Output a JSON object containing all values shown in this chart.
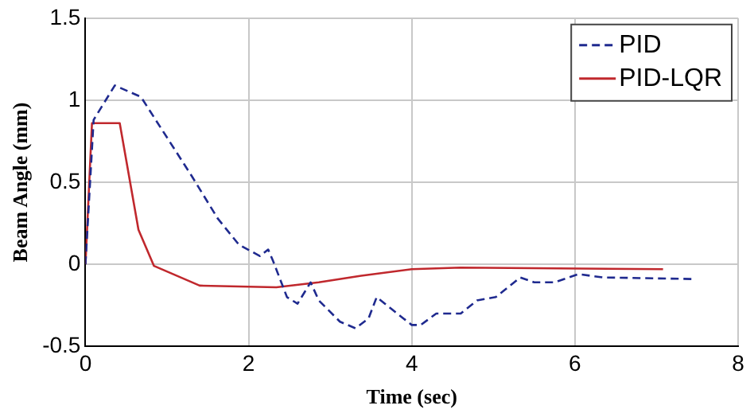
{
  "chart_data": {
    "type": "line",
    "xlabel": "Time (sec)",
    "ylabel": "Beam Angle (mm)",
    "xlim": [
      0,
      8
    ],
    "xticks": [
      0,
      2,
      4,
      6,
      8
    ],
    "ylim": [
      -0.5,
      1.5
    ],
    "yticks": [
      -0.5,
      0,
      0.5,
      1,
      1.5
    ],
    "grid": true,
    "legend": "top right",
    "marker": "none",
    "series": [
      {
        "name": "PID",
        "color": "#1f2a8f",
        "line_style": "dashed",
        "x": [
          0,
          0.1,
          0.36,
          0.68,
          1.3,
          1.62,
          1.88,
          2.14,
          2.24,
          2.3,
          2.47,
          2.6,
          2.76,
          2.86,
          3.12,
          3.31,
          3.47,
          3.57,
          3.77,
          4.0,
          4.11,
          4.3,
          4.6,
          4.8,
          5.03,
          5.33,
          5.5,
          5.75,
          6.04,
          6.34,
          7.47
        ],
        "values": [
          0,
          0.88,
          1.09,
          1.02,
          0.54,
          0.28,
          0.12,
          0.05,
          0.09,
          0.02,
          -0.2,
          -0.24,
          -0.11,
          -0.22,
          -0.35,
          -0.39,
          -0.33,
          -0.2,
          -0.28,
          -0.37,
          -0.37,
          -0.3,
          -0.3,
          -0.22,
          -0.2,
          -0.08,
          -0.11,
          -0.11,
          -0.06,
          -0.08,
          -0.09
        ]
      },
      {
        "name": "PID-LQR",
        "color": "#c0282d",
        "line_style": "solid",
        "x": [
          0,
          0.08,
          0.42,
          0.65,
          0.84,
          1.4,
          2.34,
          2.86,
          3.38,
          4.0,
          4.6,
          7.08
        ],
        "values": [
          0,
          0.86,
          0.86,
          0.21,
          -0.01,
          -0.13,
          -0.14,
          -0.11,
          -0.07,
          -0.03,
          -0.02,
          -0.03
        ]
      }
    ]
  }
}
